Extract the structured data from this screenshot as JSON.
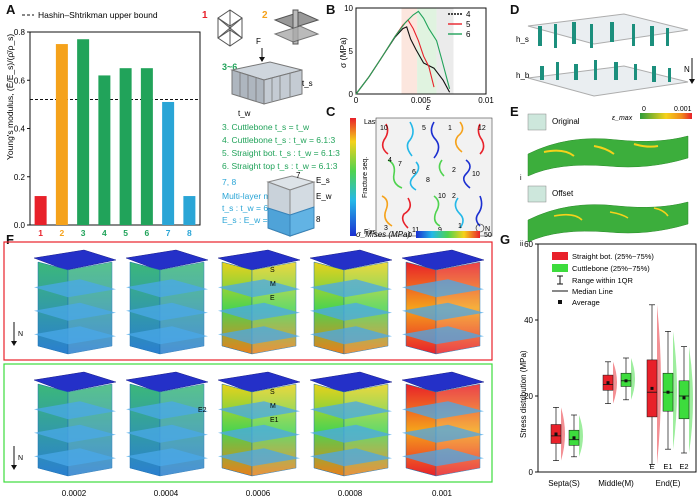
{
  "panels": {
    "A": "A",
    "B": "B",
    "C": "C",
    "D": "D",
    "E": "E",
    "F": "F",
    "G": "G"
  },
  "colors": {
    "red": "#e8212a",
    "orange": "#f5a21b",
    "green": "#21a35a",
    "blue": "#2aa5d6",
    "lgreen": "#3ddc3d"
  },
  "panelA": {
    "legend": "Hashin–Shtrikman upper bound",
    "ylabel": "Young's modulus, (Ē/E_s)/(ρ̄/ρ_s)",
    "chart_data": {
      "type": "bar",
      "categories": [
        "1",
        "2",
        "3",
        "4",
        "5",
        "6",
        "7",
        "8"
      ],
      "values": [
        0.12,
        0.75,
        0.77,
        0.62,
        0.65,
        0.65,
        0.51,
        0.12
      ],
      "ylim": [
        0,
        0.8
      ],
      "yticks": [
        "0.0",
        "0.2",
        "0.4",
        "0.6",
        "0.8"
      ],
      "hs_bound": 0.52
    },
    "notes": {
      "n1": "1",
      "n2": "2",
      "n36": "3~6",
      "F": "F",
      "ts": "t_s",
      "tw": "t_w",
      "l3": "3. Cuttlebone  t_s = t_w",
      "l4": "4. Cuttlebone  t_s : t_w = 6.1:3",
      "l5": "5. Straight bot.  t_s : t_w = 6.1:3",
      "l6": "6. Straight top  t_s : t_w = 6.1:3",
      "l78": "7, 8",
      "lm": "Multi-layer model",
      "lm2": "t_s : t_w = 6.1:3",
      "lm3": "E_s : E_w = 29.6:51",
      "e7": "7",
      "e8": "8",
      "es": "E_s",
      "ew": "E_w"
    }
  },
  "panelB": {
    "ylabel": "σ (MPa)",
    "xlabel": "ε",
    "xticks": [
      "0",
      "0.005",
      "0.01"
    ],
    "yticks": [
      "0",
      "5",
      "10"
    ],
    "legend": [
      "4",
      "5",
      "6"
    ],
    "chart_data": {
      "type": "line",
      "xlim": [
        0,
        0.01
      ],
      "ylim": [
        0,
        10
      ],
      "series": [
        {
          "name": "4",
          "color": "#111111",
          "points": [
            [
              0,
              0
            ],
            [
              0.001,
              2.0
            ],
            [
              0.002,
              4.3
            ],
            [
              0.003,
              6.6
            ],
            [
              0.0036,
              7.6
            ],
            [
              0.0039,
              7.8
            ],
            [
              0.0042,
              6.4
            ],
            [
              0.0046,
              5.2
            ],
            [
              0.0052,
              3.6
            ],
            [
              0.006,
              3.0
            ],
            [
              0.0067,
              1.6
            ],
            [
              0.0072,
              0.2
            ]
          ]
        },
        {
          "name": "5",
          "color": "#e8212a",
          "points": [
            [
              0,
              0
            ],
            [
              0.001,
              2.0
            ],
            [
              0.002,
              4.3
            ],
            [
              0.003,
              6.7
            ],
            [
              0.0036,
              8.0
            ],
            [
              0.004,
              8.6
            ],
            [
              0.0044,
              7.6
            ],
            [
              0.0048,
              6.2
            ],
            [
              0.0052,
              4.4
            ],
            [
              0.0056,
              3.2
            ],
            [
              0.006,
              0.8
            ]
          ]
        },
        {
          "name": "6",
          "color": "#21a35a",
          "points": [
            [
              0,
              0
            ],
            [
              0.001,
              2.0
            ],
            [
              0.002,
              4.3
            ],
            [
              0.003,
              6.7
            ],
            [
              0.0038,
              8.3
            ],
            [
              0.0044,
              9.2
            ],
            [
              0.0048,
              9.6
            ],
            [
              0.0052,
              8.8
            ],
            [
              0.0056,
              7.6
            ],
            [
              0.0062,
              6.2
            ],
            [
              0.0066,
              4.0
            ],
            [
              0.0072,
              0.6
            ]
          ]
        }
      ]
    }
  },
  "panelC": {
    "cbar_top": "Last",
    "cbar_mid": "Fracture seq.",
    "cbar_bot": "First",
    "north": "N",
    "numbers": [
      "10",
      "5",
      "1",
      "12",
      "4",
      "7",
      "6",
      "2",
      "10",
      "8",
      "10",
      "2",
      "3",
      "11",
      "9",
      "1"
    ]
  },
  "panelD": {
    "hs": "h_s",
    "hb": "h_b",
    "north": "N"
  },
  "panelE": {
    "title": "Original",
    "offset": "Offset",
    "i": "i",
    "ii": "ii",
    "cbar_label": "ε_max",
    "cbar_min": "0",
    "cbar_max": "0.001"
  },
  "panelF": {
    "cbar_label": "σ_Mises (MPa)",
    "cbar_min": "0",
    "cbar_max": "50",
    "top_labels": [
      "S",
      "M",
      "E"
    ],
    "bot_labels": [
      "S",
      "M",
      "E1",
      "E2"
    ],
    "north": "N",
    "strains": [
      "0.0002",
      "0.0004",
      "0.0006",
      "0.0008",
      "0.001"
    ]
  },
  "panelG": {
    "ylabel": "Stress distribution (MPa)",
    "legend": [
      "Straight bot. (25%~75%)",
      "Cuttlebone (25%~75%)",
      "Range within 1QR",
      "Median Line",
      "Average"
    ],
    "groups": [
      "Septa(S)",
      "Middle(M)",
      "End(E)"
    ],
    "sub": [
      "E",
      "E1",
      "E2"
    ],
    "yticks": [
      "0",
      "20",
      "40",
      "60"
    ],
    "chart_data": {
      "type": "box",
      "ylim": [
        0,
        60
      ],
      "boxes": [
        {
          "group": "Septa(S)",
          "series": "Straight bot.",
          "q1": 7.5,
          "median": 9.5,
          "q3": 12.5,
          "min": 3,
          "max": 17,
          "mean": 10
        },
        {
          "group": "Septa(S)",
          "series": "Cuttlebone",
          "q1": 7,
          "median": 8.5,
          "q3": 11,
          "min": 4,
          "max": 15,
          "mean": 9
        },
        {
          "group": "Middle(M)",
          "series": "Straight bot.",
          "q1": 21.5,
          "median": 23,
          "q3": 25.5,
          "min": 18,
          "max": 29,
          "mean": 23.5
        },
        {
          "group": "Middle(M)",
          "series": "Cuttlebone",
          "q1": 22.5,
          "median": 24,
          "q3": 26,
          "min": 19,
          "max": 30,
          "mean": 24
        },
        {
          "group": "End(E)",
          "series": "Straight bot. E",
          "q1": 14.5,
          "median": 21,
          "q3": 29.5,
          "min": 2,
          "max": 44,
          "mean": 22
        },
        {
          "group": "End(E)",
          "series": "Cuttlebone E1",
          "q1": 16,
          "median": 21,
          "q3": 26,
          "min": 6,
          "max": 37,
          "mean": 21
        },
        {
          "group": "End(E)",
          "series": "Cuttlebone E2",
          "q1": 14,
          "median": 20,
          "q3": 24,
          "min": 5,
          "max": 33,
          "mean": 19.5
        }
      ]
    }
  }
}
